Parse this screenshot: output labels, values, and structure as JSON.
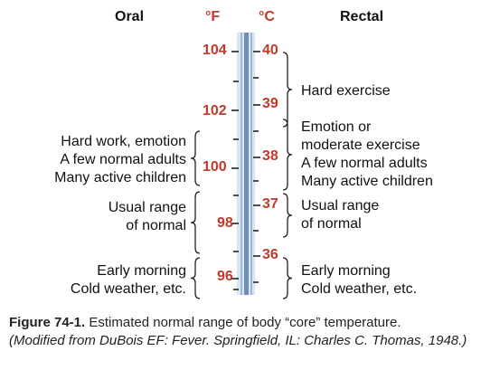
{
  "headers": {
    "oral": "Oral",
    "fahrenheit": "°F",
    "celsius": "°C",
    "rectal": "Rectal"
  },
  "fahrenheit_ticks": [
    "104",
    "102",
    "100",
    "98",
    "96"
  ],
  "celsius_ticks": [
    "40",
    "39",
    "38",
    "37",
    "36"
  ],
  "oral_labels": [
    {
      "lines": [
        "Hard work, emotion",
        "A few normal adults",
        "Many active children"
      ]
    },
    {
      "lines": [
        "Usual range",
        "of normal"
      ]
    },
    {
      "lines": [
        "Early morning",
        "Cold weather, etc."
      ]
    }
  ],
  "rectal_labels": [
    {
      "lines": [
        "Hard exercise"
      ]
    },
    {
      "lines": [
        "Emotion or",
        "moderate exercise",
        "A few normal adults",
        "Many active children"
      ]
    },
    {
      "lines": [
        "Usual range",
        "of normal"
      ]
    },
    {
      "lines": [
        "Early morning",
        "Cold weather, etc."
      ]
    }
  ],
  "caption": {
    "figure": "Figure 74-1.",
    "text": " Estimated normal range of body “core” temperature.",
    "source": "(Modified from DuBois EF: Fever. Springfield, IL: Charles C. Thomas, 1948.)"
  },
  "colors": {
    "accent": "#c0392b",
    "tube_blue": "#6a8fb8",
    "tube_bg": "#dbe5ef"
  }
}
